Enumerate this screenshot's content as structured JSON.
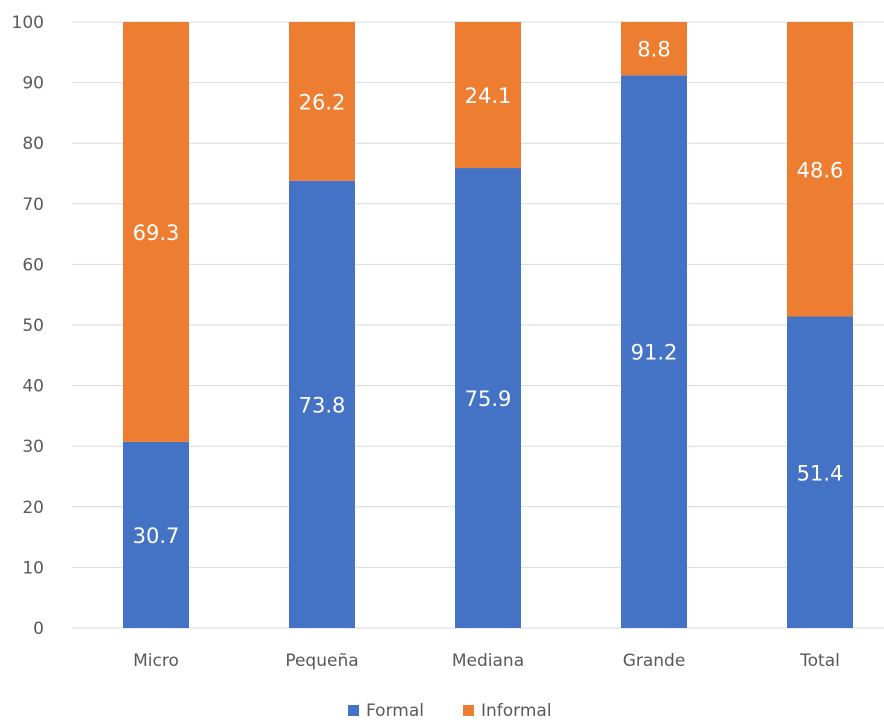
{
  "chart_data": {
    "type": "bar",
    "stacked": true,
    "title": "",
    "xlabel": "",
    "ylabel": "",
    "categories": [
      "Micro",
      "Pequeña",
      "Mediana",
      "Grande",
      "Total"
    ],
    "series": [
      {
        "name": "Formal",
        "color": "#4472C4",
        "values": [
          30.7,
          73.8,
          75.9,
          91.2,
          51.4
        ]
      },
      {
        "name": "Informal",
        "color": "#ED7D31",
        "values": [
          69.3,
          26.2,
          24.1,
          8.8,
          48.6
        ]
      }
    ],
    "ylim": [
      0,
      100
    ],
    "yticks": [
      0,
      10,
      20,
      30,
      40,
      50,
      60,
      70,
      80,
      90,
      100
    ],
    "grid": true,
    "legend_position": "bottom",
    "data_labels": true
  }
}
